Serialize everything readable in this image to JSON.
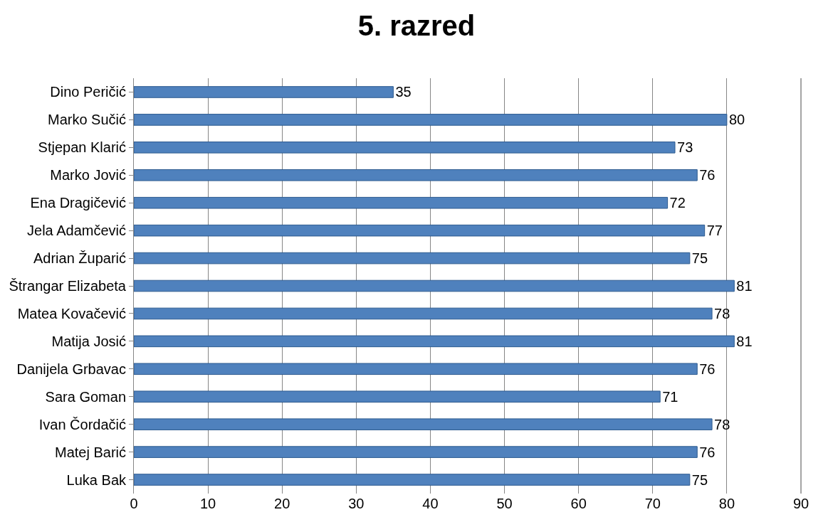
{
  "chart_data": {
    "type": "bar",
    "title": "5. razred",
    "orientation": "horizontal",
    "categories": [
      "Dino Peričić",
      "Marko Sučić",
      "Stjepan Klarić",
      "Marko Jović",
      "Ena Dragičević",
      "Jela Adamčević",
      "Adrian Župarić",
      "Štrangar Elizabeta",
      "Matea Kovačević",
      "Matija Josić",
      "Danijela Grbavac",
      "Sara Goman",
      "Ivan Čordačić",
      "Matej Barić",
      "Luka Bak"
    ],
    "values": [
      35,
      80,
      73,
      76,
      72,
      77,
      75,
      81,
      78,
      81,
      76,
      71,
      78,
      76,
      75
    ],
    "color": "#4f81bd",
    "xlim": [
      0,
      90
    ],
    "xticks": [
      0,
      10,
      20,
      30,
      40,
      50,
      60,
      70,
      80,
      90
    ],
    "grid": "x",
    "data_labels": true
  }
}
